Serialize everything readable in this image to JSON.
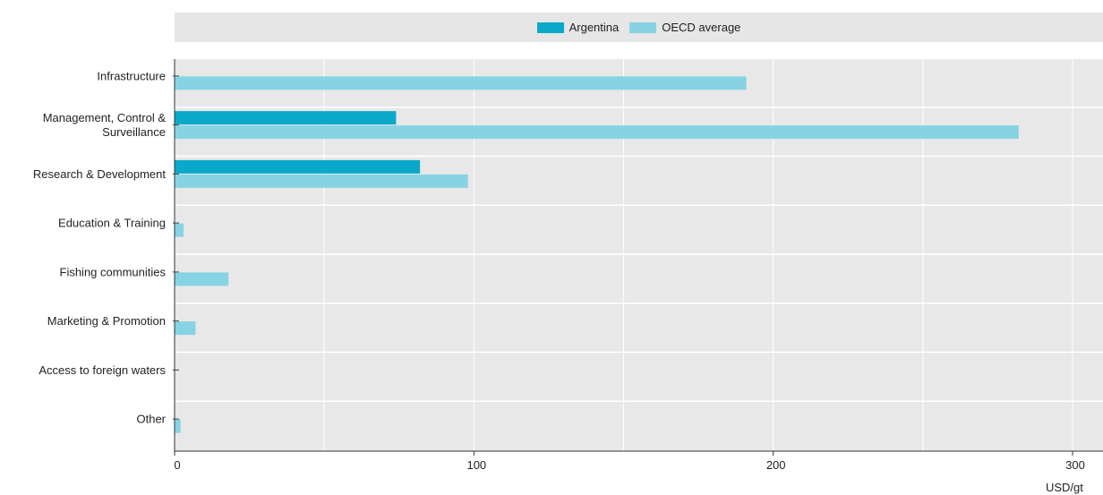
{
  "title_fragment": "",
  "colors": {
    "argentina": "#0aa9c9",
    "oecd": "#86d3e3",
    "plot_bg": "#e8e8e8",
    "grid": "#ffffff"
  },
  "chart_data": {
    "type": "bar",
    "orientation": "horizontal",
    "categories": [
      "Infrastructure",
      [
        "Management, Control &",
        "Surveillance"
      ],
      "Research & Development",
      "Education & Training",
      "Fishing communities",
      "Marketing & Promotion",
      "Access to foreign waters",
      "Other"
    ],
    "series": [
      {
        "name": "Argentina",
        "values": [
          0,
          74,
          82,
          0,
          0,
          0,
          0,
          0
        ]
      },
      {
        "name": "OECD average",
        "values": [
          191,
          282,
          98,
          3,
          18,
          7,
          0,
          2
        ]
      }
    ],
    "xlim": [
      0,
      300
    ],
    "xticks": [
      0,
      100,
      200,
      300
    ],
    "xlabel": "USD/gt",
    "legend_position": "top",
    "grid": true
  }
}
